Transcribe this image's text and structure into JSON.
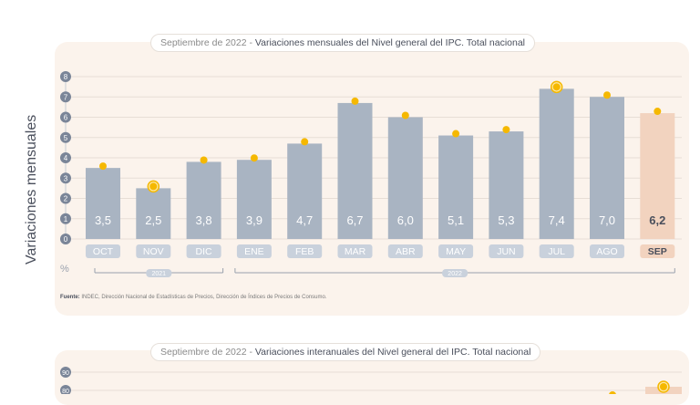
{
  "chart1": {
    "title_prefix": "Septiembre de 2022 - ",
    "title_main": "Variaciones mensuales del Nivel general del IPC. Total nacional",
    "ylabel": "Variaciones mensuales",
    "unit": "%",
    "source_label": "Fuente:",
    "source_text": "INDEC, Dirección Nacional de Estadísticas de Precios, Dirección de Índices de Precios de Consumo.",
    "year_groups": [
      {
        "label": "2021"
      },
      {
        "label": "2022"
      }
    ]
  },
  "chart2": {
    "title_prefix": "Septiembre de 2022 - ",
    "title_main": "Variaciones interanuales del Nivel general del IPC. Total nacional",
    "yticks": [
      90,
      80
    ]
  },
  "chart_data": [
    {
      "type": "bar",
      "title": "Septiembre de 2022 - Variaciones mensuales del Nivel general del IPC. Total nacional",
      "ylabel": "Variaciones mensuales",
      "unit": "%",
      "ylim": [
        0,
        8
      ],
      "yticks": [
        0,
        1,
        2,
        3,
        4,
        5,
        6,
        7,
        8
      ],
      "categories": [
        "OCT",
        "NOV",
        "DIC",
        "ENE",
        "FEB",
        "MAR",
        "ABR",
        "MAY",
        "JUN",
        "JUL",
        "AGO",
        "SEP"
      ],
      "values": [
        3.5,
        2.5,
        3.8,
        3.9,
        4.7,
        6.7,
        6.0,
        5.1,
        5.3,
        7.4,
        7.0,
        6.2
      ],
      "value_labels": [
        "3,5",
        "2,5",
        "3,8",
        "3,9",
        "4,7",
        "6,7",
        "6,0",
        "5,1",
        "5,3",
        "7,4",
        "7,0",
        "6,2"
      ],
      "highlight_index": 11,
      "ring_marker_indices": [
        1,
        9
      ],
      "colors": {
        "bar": "#a9b4c2",
        "highlight_bar": "#f2d3bf",
        "marker": "#f5b800",
        "tick_circle": "#7a8598",
        "label_chip": "#c9d1dc",
        "highlight_text": "#4a4f5c"
      }
    },
    {
      "type": "bar",
      "title": "Septiembre de 2022 - Variaciones interanuales del Nivel general del IPC. Total nacional",
      "yticks": [
        90,
        80
      ]
    }
  ]
}
